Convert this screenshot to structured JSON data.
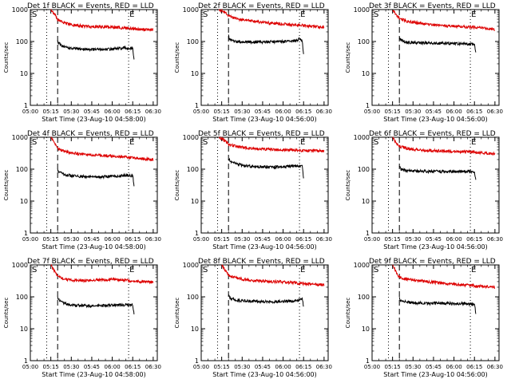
{
  "figure": {
    "background": "#ffffff",
    "foreground": "#000000",
    "events_color": "#000000",
    "lld_color": "#dd0000"
  },
  "chart_data": [
    {
      "type": "line",
      "title": "Det 1f BLACK = Events, RED = LLD",
      "ylabel": "Counts/sec",
      "xlabel": "Start Time (23-Aug-10 04:58:00)",
      "yscale": "log",
      "ylim": [
        1,
        1000
      ],
      "xlim": [
        "05:00",
        "06:33"
      ],
      "yticks": [
        "1",
        "10",
        "100",
        "1000"
      ],
      "xticks": [
        "05:00",
        "05:15",
        "05:30",
        "05:45",
        "06:00",
        "06:15",
        "06:30"
      ],
      "markers": [
        "S",
        "E"
      ],
      "vlines": [
        {
          "t": "05:12",
          "style": "dotted"
        },
        {
          "t": "05:20",
          "style": "dashed"
        },
        {
          "t": "06:12",
          "style": "dotted"
        }
      ],
      "series": [
        {
          "name": "Events",
          "t": [
            "05:20",
            "05:21",
            "05:25",
            "05:30",
            "05:40",
            "05:50",
            "06:00",
            "06:05",
            "06:10",
            "06:15",
            "06:16"
          ],
          "values": [
            100,
            85,
            68,
            60,
            57,
            56,
            58,
            60,
            62,
            60,
            25
          ]
        },
        {
          "name": "LLD",
          "t": [
            "05:15",
            "05:18",
            "05:20",
            "05:25",
            "05:30",
            "05:40",
            "05:50",
            "06:00",
            "06:10",
            "06:20",
            "06:30"
          ],
          "values": [
            1000,
            700,
            480,
            380,
            330,
            300,
            290,
            280,
            265,
            240,
            230
          ]
        }
      ]
    },
    {
      "type": "line",
      "title": "Det 2f BLACK = Events, RED = LLD",
      "ylabel": "Counts/sec",
      "xlabel": "Start Time (23-Aug-10 04:56:00)",
      "yscale": "log",
      "ylim": [
        1,
        1000
      ],
      "xlim": [
        "05:00",
        "06:33"
      ],
      "yticks": [
        "1",
        "10",
        "100",
        "1000"
      ],
      "xticks": [
        "05:00",
        "05:15",
        "05:30",
        "05:45",
        "06:00",
        "06:15",
        "06:30"
      ],
      "markers": [
        "S",
        "E"
      ],
      "vlines": [
        {
          "t": "05:12",
          "style": "dotted"
        },
        {
          "t": "05:20",
          "style": "dashed"
        },
        {
          "t": "06:12",
          "style": "dotted"
        }
      ],
      "series": [
        {
          "name": "Events",
          "t": [
            "05:20",
            "05:21",
            "05:25",
            "05:30",
            "05:40",
            "05:50",
            "06:00",
            "06:05",
            "06:10",
            "06:12",
            "06:14",
            "06:15"
          ],
          "values": [
            150,
            110,
            100,
            98,
            96,
            98,
            100,
            102,
            105,
            130,
            100,
            40
          ]
        },
        {
          "name": "LLD",
          "t": [
            "05:13",
            "05:18",
            "05:20",
            "05:25",
            "05:30",
            "05:40",
            "05:50",
            "06:00",
            "06:10",
            "06:20",
            "06:30"
          ],
          "values": [
            1000,
            800,
            650,
            520,
            480,
            420,
            380,
            350,
            330,
            300,
            280
          ]
        }
      ]
    },
    {
      "type": "line",
      "title": "Det 3f BLACK = Events, RED = LLD",
      "ylabel": "Counts/sec",
      "xlabel": "Start Time (23-Aug-10 04:56:00)",
      "yscale": "log",
      "ylim": [
        1,
        1000
      ],
      "xlim": [
        "05:00",
        "06:33"
      ],
      "yticks": [
        "1",
        "10",
        "100",
        "1000"
      ],
      "xticks": [
        "05:00",
        "05:15",
        "05:30",
        "05:45",
        "06:00",
        "06:15",
        "06:30"
      ],
      "markers": [
        "S",
        "E"
      ],
      "vlines": [
        {
          "t": "05:12",
          "style": "dotted"
        },
        {
          "t": "05:20",
          "style": "dashed"
        },
        {
          "t": "06:12",
          "style": "dotted"
        }
      ],
      "series": [
        {
          "name": "Events",
          "t": [
            "05:20",
            "05:21",
            "05:25",
            "05:30",
            "05:40",
            "05:50",
            "06:00",
            "06:05",
            "06:10",
            "06:15",
            "06:16"
          ],
          "values": [
            130,
            110,
            95,
            92,
            90,
            88,
            86,
            85,
            84,
            82,
            45
          ]
        },
        {
          "name": "LLD",
          "t": [
            "05:15",
            "05:18",
            "05:20",
            "05:25",
            "05:30",
            "05:40",
            "05:50",
            "06:00",
            "06:10",
            "06:20",
            "06:30"
          ],
          "values": [
            1000,
            650,
            520,
            440,
            400,
            350,
            320,
            300,
            290,
            270,
            240
          ]
        }
      ]
    },
    {
      "type": "line",
      "title": "Det 4f BLACK = Events, RED = LLD",
      "ylabel": "Counts/sec",
      "xlabel": "Start Time (23-Aug-10 04:58:00)",
      "yscale": "log",
      "ylim": [
        1,
        1000
      ],
      "xlim": [
        "05:00",
        "06:33"
      ],
      "yticks": [
        "1",
        "10",
        "100",
        "1000"
      ],
      "xticks": [
        "05:00",
        "05:15",
        "05:30",
        "05:45",
        "06:00",
        "06:15",
        "06:30"
      ],
      "markers": [
        "S",
        "E"
      ],
      "vlines": [
        {
          "t": "05:12",
          "style": "dotted"
        },
        {
          "t": "05:20",
          "style": "dashed"
        },
        {
          "t": "06:12",
          "style": "dotted"
        }
      ],
      "series": [
        {
          "name": "Events",
          "t": [
            "05:20",
            "05:21",
            "05:25",
            "05:30",
            "05:40",
            "05:50",
            "06:00",
            "06:05",
            "06:10",
            "06:15",
            "06:16"
          ],
          "values": [
            95,
            80,
            68,
            62,
            58,
            57,
            60,
            62,
            65,
            62,
            30
          ]
        },
        {
          "name": "LLD",
          "t": [
            "05:15",
            "05:18",
            "05:20",
            "05:25",
            "05:30",
            "05:40",
            "05:50",
            "06:00",
            "06:10",
            "06:20",
            "06:30"
          ],
          "values": [
            1000,
            650,
            450,
            360,
            320,
            290,
            270,
            260,
            240,
            215,
            200
          ]
        }
      ]
    },
    {
      "type": "line",
      "title": "Det 5f BLACK = Events, RED = LLD",
      "ylabel": "Counts/sec",
      "xlabel": "Start Time (23-Aug-10 04:56:00)",
      "yscale": "log",
      "ylim": [
        1,
        1000
      ],
      "xlim": [
        "05:00",
        "06:33"
      ],
      "yticks": [
        "1",
        "10",
        "100",
        "1000"
      ],
      "xticks": [
        "05:00",
        "05:15",
        "05:30",
        "05:45",
        "06:00",
        "06:15",
        "06:30"
      ],
      "markers": [
        "S",
        "E"
      ],
      "vlines": [
        {
          "t": "05:12",
          "style": "dotted"
        },
        {
          "t": "05:20",
          "style": "dashed"
        },
        {
          "t": "06:12",
          "style": "dotted"
        }
      ],
      "series": [
        {
          "name": "Events",
          "t": [
            "05:20",
            "05:21",
            "05:25",
            "05:30",
            "05:40",
            "05:50",
            "06:00",
            "06:05",
            "06:10",
            "06:14",
            "06:15"
          ],
          "values": [
            220,
            180,
            150,
            130,
            120,
            115,
            118,
            122,
            125,
            120,
            55
          ]
        },
        {
          "name": "LLD",
          "t": [
            "05:13",
            "05:18",
            "05:20",
            "05:25",
            "05:30",
            "05:40",
            "05:50",
            "06:00",
            "06:10",
            "06:20",
            "06:30"
          ],
          "values": [
            1000,
            750,
            620,
            520,
            480,
            440,
            420,
            400,
            390,
            380,
            370
          ]
        }
      ]
    },
    {
      "type": "line",
      "title": "Det 6f BLACK = Events, RED = LLD",
      "ylabel": "Counts/sec",
      "xlabel": "Start Time (23-Aug-10 04:56:00)",
      "yscale": "log",
      "ylim": [
        1,
        1000
      ],
      "xlim": [
        "05:00",
        "06:33"
      ],
      "yticks": [
        "1",
        "10",
        "100",
        "1000"
      ],
      "xticks": [
        "05:00",
        "05:15",
        "05:30",
        "05:45",
        "06:00",
        "06:15",
        "06:30"
      ],
      "markers": [
        "S",
        "E"
      ],
      "vlines": [
        {
          "t": "05:12",
          "style": "dotted"
        },
        {
          "t": "05:20",
          "style": "dashed"
        },
        {
          "t": "06:12",
          "style": "dotted"
        }
      ],
      "series": [
        {
          "name": "Events",
          "t": [
            "05:20",
            "05:21",
            "05:25",
            "05:30",
            "05:40",
            "05:50",
            "06:00",
            "06:05",
            "06:10",
            "06:15",
            "06:16"
          ],
          "values": [
            120,
            100,
            90,
            88,
            85,
            84,
            84,
            85,
            86,
            82,
            45
          ]
        },
        {
          "name": "LLD",
          "t": [
            "05:15",
            "05:18",
            "05:20",
            "05:25",
            "05:30",
            "05:40",
            "05:50",
            "06:00",
            "06:10",
            "06:20",
            "06:30"
          ],
          "values": [
            1000,
            650,
            520,
            450,
            420,
            390,
            370,
            360,
            350,
            330,
            300
          ]
        }
      ]
    },
    {
      "type": "line",
      "title": "Det 7f BLACK = Events, RED = LLD",
      "ylabel": "Counts/sec",
      "xlabel": "Start Time (23-Aug-10 04:58:00)",
      "yscale": "log",
      "ylim": [
        1,
        1000
      ],
      "xlim": [
        "05:00",
        "06:33"
      ],
      "yticks": [
        "1",
        "10",
        "100",
        "1000"
      ],
      "xticks": [
        "05:00",
        "05:15",
        "05:30",
        "05:45",
        "06:00",
        "06:15",
        "06:30"
      ],
      "markers": [
        "S",
        "E"
      ],
      "vlines": [
        {
          "t": "05:12",
          "style": "dotted"
        },
        {
          "t": "05:20",
          "style": "dashed"
        },
        {
          "t": "06:12",
          "style": "dotted"
        }
      ],
      "series": [
        {
          "name": "Events",
          "t": [
            "05:20",
            "05:21",
            "05:25",
            "05:30",
            "05:40",
            "05:50",
            "06:00",
            "06:05",
            "06:10",
            "06:15",
            "06:16"
          ],
          "values": [
            100,
            80,
            62,
            55,
            52,
            52,
            54,
            55,
            56,
            55,
            30
          ]
        },
        {
          "name": "LLD",
          "t": [
            "05:15",
            "05:18",
            "05:20",
            "05:25",
            "05:30",
            "05:40",
            "05:50",
            "06:00",
            "06:10",
            "06:20",
            "06:30"
          ],
          "values": [
            1000,
            600,
            430,
            360,
            330,
            320,
            340,
            350,
            330,
            300,
            290
          ]
        }
      ]
    },
    {
      "type": "line",
      "title": "Det 8f BLACK = Events, RED = LLD",
      "ylabel": "Counts/sec",
      "xlabel": "Start Time (23-Aug-10 04:56:00)",
      "yscale": "log",
      "ylim": [
        1,
        1000
      ],
      "xlim": [
        "05:00",
        "06:33"
      ],
      "yticks": [
        "1",
        "10",
        "100",
        "1000"
      ],
      "xticks": [
        "05:00",
        "05:15",
        "05:30",
        "05:45",
        "06:00",
        "06:15",
        "06:30"
      ],
      "markers": [
        "S",
        "E"
      ],
      "vlines": [
        {
          "t": "05:12",
          "style": "dotted"
        },
        {
          "t": "05:20",
          "style": "dashed"
        },
        {
          "t": "06:12",
          "style": "dotted"
        }
      ],
      "series": [
        {
          "name": "Events",
          "t": [
            "05:20",
            "05:21",
            "05:25",
            "05:30",
            "05:40",
            "05:50",
            "06:00",
            "06:05",
            "06:10",
            "06:14",
            "06:15"
          ],
          "values": [
            110,
            90,
            80,
            76,
            72,
            70,
            72,
            74,
            76,
            90,
            50
          ]
        },
        {
          "name": "LLD",
          "t": [
            "05:15",
            "05:18",
            "05:20",
            "05:25",
            "05:30",
            "05:40",
            "05:50",
            "06:00",
            "06:10",
            "06:20",
            "06:30"
          ],
          "values": [
            1000,
            650,
            480,
            400,
            360,
            320,
            300,
            290,
            270,
            250,
            240
          ]
        }
      ]
    },
    {
      "type": "line",
      "title": "Det 9f BLACK = Events, RED = LLD",
      "ylabel": "Counts/sec",
      "xlabel": "Start Time (23-Aug-10 04:56:00)",
      "yscale": "log",
      "ylim": [
        1,
        1000
      ],
      "xlim": [
        "05:00",
        "06:33"
      ],
      "yticks": [
        "1",
        "10",
        "100",
        "1000"
      ],
      "xticks": [
        "05:00",
        "05:15",
        "05:30",
        "05:45",
        "06:00",
        "06:15",
        "06:30"
      ],
      "markers": [
        "S",
        "E"
      ],
      "vlines": [
        {
          "t": "05:12",
          "style": "dotted"
        },
        {
          "t": "05:20",
          "style": "dashed"
        },
        {
          "t": "06:12",
          "style": "dotted"
        }
      ],
      "series": [
        {
          "name": "Events",
          "t": [
            "05:20",
            "05:21",
            "05:25",
            "05:30",
            "05:40",
            "05:50",
            "06:00",
            "06:05",
            "06:10",
            "06:15",
            "06:16"
          ],
          "values": [
            90,
            75,
            68,
            65,
            63,
            62,
            62,
            62,
            60,
            58,
            32
          ]
        },
        {
          "name": "LLD",
          "t": [
            "05:15",
            "05:18",
            "05:20",
            "05:25",
            "05:30",
            "05:40",
            "05:50",
            "06:00",
            "06:10",
            "06:20",
            "06:30"
          ],
          "values": [
            1000,
            550,
            420,
            360,
            330,
            300,
            270,
            250,
            230,
            210,
            200
          ]
        }
      ]
    }
  ]
}
